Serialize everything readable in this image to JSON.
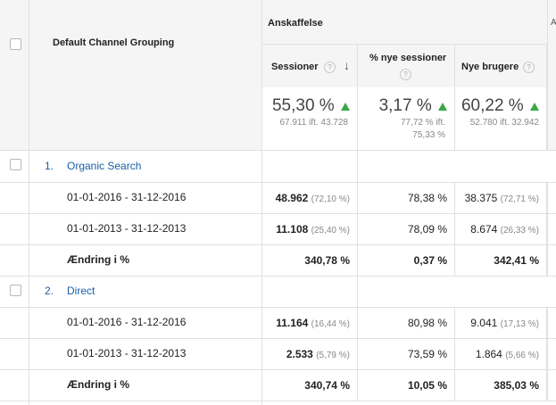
{
  "header": {
    "dimension_label": "Default Channel Grouping",
    "group_label": "Anskaffelse",
    "columns": [
      {
        "label": "Sessioner",
        "help": "?",
        "sorted": true
      },
      {
        "label": "% nye sessioner",
        "help": "?"
      },
      {
        "label": "Nye brugere",
        "help": "?"
      }
    ]
  },
  "summary": [
    {
      "value": "55,30 %",
      "sub1": "67.911 ift. 43.728",
      "sub2": ""
    },
    {
      "value": "3,17 %",
      "sub1": "77,72 % ift.",
      "sub2": "75,33 %"
    },
    {
      "value": "60,22 %",
      "sub1": "52.780 ift. 32.942",
      "sub2": ""
    }
  ],
  "groups": [
    {
      "index": "1.",
      "name": "Organic Search",
      "rows": [
        {
          "label": "01-01-2016 - 31-12-2016",
          "sessions": "48.962",
          "sessions_pct": "(72,10 %)",
          "new_sessions": "78,38 %",
          "new_users": "38.375",
          "new_users_pct": "(72,71 %)"
        },
        {
          "label": "01-01-2013 - 31-12-2013",
          "sessions": "11.108",
          "sessions_pct": "(25,40 %)",
          "new_sessions": "78,09 %",
          "new_users": "8.674",
          "new_users_pct": "(26,33 %)"
        }
      ],
      "change": {
        "label": "Ændring i %",
        "sessions": "340,78 %",
        "new_sessions": "0,37 %",
        "new_users": "342,41 %"
      }
    },
    {
      "index": "2.",
      "name": "Direct",
      "rows": [
        {
          "label": "01-01-2016 - 31-12-2016",
          "sessions": "11.164",
          "sessions_pct": "(16,44 %)",
          "new_sessions": "80,98 %",
          "new_users": "9.041",
          "new_users_pct": "(17,13 %)"
        },
        {
          "label": "01-01-2013 - 31-12-2013",
          "sessions": "2.533",
          "sessions_pct": "(5,79 %)",
          "new_sessions": "73,59 %",
          "new_users": "1.864",
          "new_users_pct": "(5,66 %)"
        }
      ],
      "change": {
        "label": "Ændring i %",
        "sessions": "340,74 %",
        "new_sessions": "10,05 %",
        "new_users": "385,03 %"
      }
    }
  ],
  "colors": {
    "link": "#1a5fa8",
    "up_arrow": "#3aa846",
    "header_bg": "#f5f5f5",
    "border": "#e0e0e0"
  }
}
